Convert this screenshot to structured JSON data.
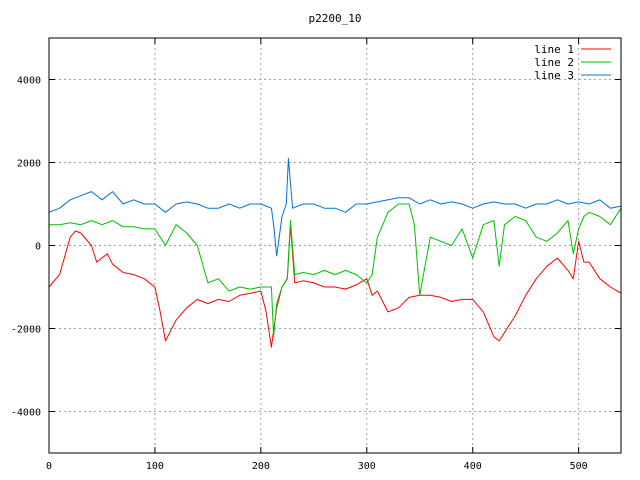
{
  "chart_data": {
    "type": "line",
    "title": "p2200_10",
    "xlabel": "",
    "ylabel": "",
    "xlim": [
      0,
      540
    ],
    "ylim": [
      -5000,
      5000
    ],
    "xticks": [
      0,
      100,
      200,
      300,
      400,
      500
    ],
    "yticks": [
      -4000,
      -2000,
      0,
      2000,
      4000
    ],
    "grid": true,
    "legend_position": "top-right",
    "series": [
      {
        "name": "line 1",
        "color": "#ff0000",
        "x": [
          0,
          10,
          20,
          25,
          30,
          40,
          45,
          55,
          60,
          70,
          80,
          90,
          100,
          105,
          110,
          120,
          130,
          140,
          150,
          160,
          170,
          180,
          190,
          200,
          205,
          210,
          215,
          220,
          225,
          228,
          232,
          240,
          250,
          260,
          270,
          280,
          290,
          300,
          305,
          310,
          320,
          330,
          340,
          350,
          360,
          370,
          380,
          390,
          400,
          410,
          420,
          425,
          430,
          440,
          450,
          460,
          470,
          480,
          490,
          495,
          500,
          505,
          510,
          520,
          530,
          540
        ],
        "y": [
          -1000,
          -700,
          200,
          350,
          300,
          0,
          -400,
          -200,
          -450,
          -650,
          -700,
          -800,
          -1000,
          -1600,
          -2300,
          -1800,
          -1500,
          -1300,
          -1400,
          -1300,
          -1350,
          -1200,
          -1150,
          -1100,
          -1600,
          -2450,
          -1500,
          -1000,
          -800,
          500,
          -900,
          -850,
          -900,
          -1000,
          -1000,
          -1050,
          -950,
          -800,
          -1200,
          -1100,
          -1600,
          -1500,
          -1250,
          -1200,
          -1200,
          -1250,
          -1350,
          -1300,
          -1300,
          -1600,
          -2200,
          -2300,
          -2100,
          -1700,
          -1200,
          -800,
          -500,
          -300,
          -600,
          -800,
          100,
          -400,
          -400,
          -800,
          -1000,
          -1150
        ]
      },
      {
        "name": "line 2",
        "color": "#00c000",
        "x": [
          0,
          10,
          20,
          30,
          40,
          50,
          60,
          70,
          80,
          90,
          100,
          110,
          120,
          130,
          140,
          150,
          160,
          170,
          180,
          190,
          200,
          210,
          212,
          215,
          220,
          225,
          228,
          232,
          240,
          250,
          260,
          270,
          280,
          290,
          300,
          305,
          310,
          320,
          330,
          340,
          345,
          350,
          360,
          370,
          380,
          390,
          400,
          410,
          420,
          425,
          430,
          440,
          450,
          460,
          470,
          480,
          490,
          495,
          500,
          505,
          510,
          520,
          530,
          540
        ],
        "y": [
          500,
          500,
          550,
          500,
          600,
          500,
          600,
          450,
          450,
          400,
          400,
          0,
          500,
          300,
          0,
          -900,
          -800,
          -1100,
          -1000,
          -1050,
          -1000,
          -1000,
          -2200,
          -1400,
          -1000,
          -800,
          600,
          -700,
          -650,
          -700,
          -600,
          -700,
          -600,
          -700,
          -900,
          -700,
          200,
          800,
          1000,
          1000,
          500,
          -1200,
          200,
          100,
          0,
          400,
          -300,
          500,
          600,
          -500,
          500,
          700,
          600,
          200,
          100,
          300,
          600,
          -200,
          400,
          700,
          800,
          700,
          500,
          900
        ]
      },
      {
        "name": "line 3",
        "color": "#0070e0",
        "x": [
          0,
          10,
          20,
          30,
          40,
          50,
          60,
          70,
          80,
          90,
          100,
          110,
          120,
          130,
          140,
          150,
          160,
          170,
          180,
          190,
          200,
          210,
          212,
          215,
          220,
          224,
          226,
          230,
          240,
          250,
          260,
          270,
          280,
          290,
          300,
          310,
          320,
          330,
          340,
          350,
          360,
          370,
          380,
          390,
          400,
          410,
          420,
          430,
          440,
          450,
          460,
          470,
          480,
          490,
          500,
          510,
          520,
          530,
          540
        ],
        "y": [
          800,
          900,
          1100,
          1200,
          1300,
          1100,
          1300,
          1000,
          1100,
          1000,
          1000,
          800,
          1000,
          1050,
          1000,
          900,
          900,
          1000,
          900,
          1000,
          1000,
          900,
          500,
          -250,
          700,
          1000,
          2100,
          900,
          1000,
          1000,
          900,
          900,
          800,
          1000,
          1000,
          1050,
          1100,
          1150,
          1150,
          1000,
          1100,
          1000,
          1050,
          1000,
          900,
          1000,
          1050,
          1000,
          1000,
          900,
          1000,
          1000,
          1100,
          1000,
          1050,
          1000,
          1100,
          900,
          950
        ]
      }
    ]
  }
}
